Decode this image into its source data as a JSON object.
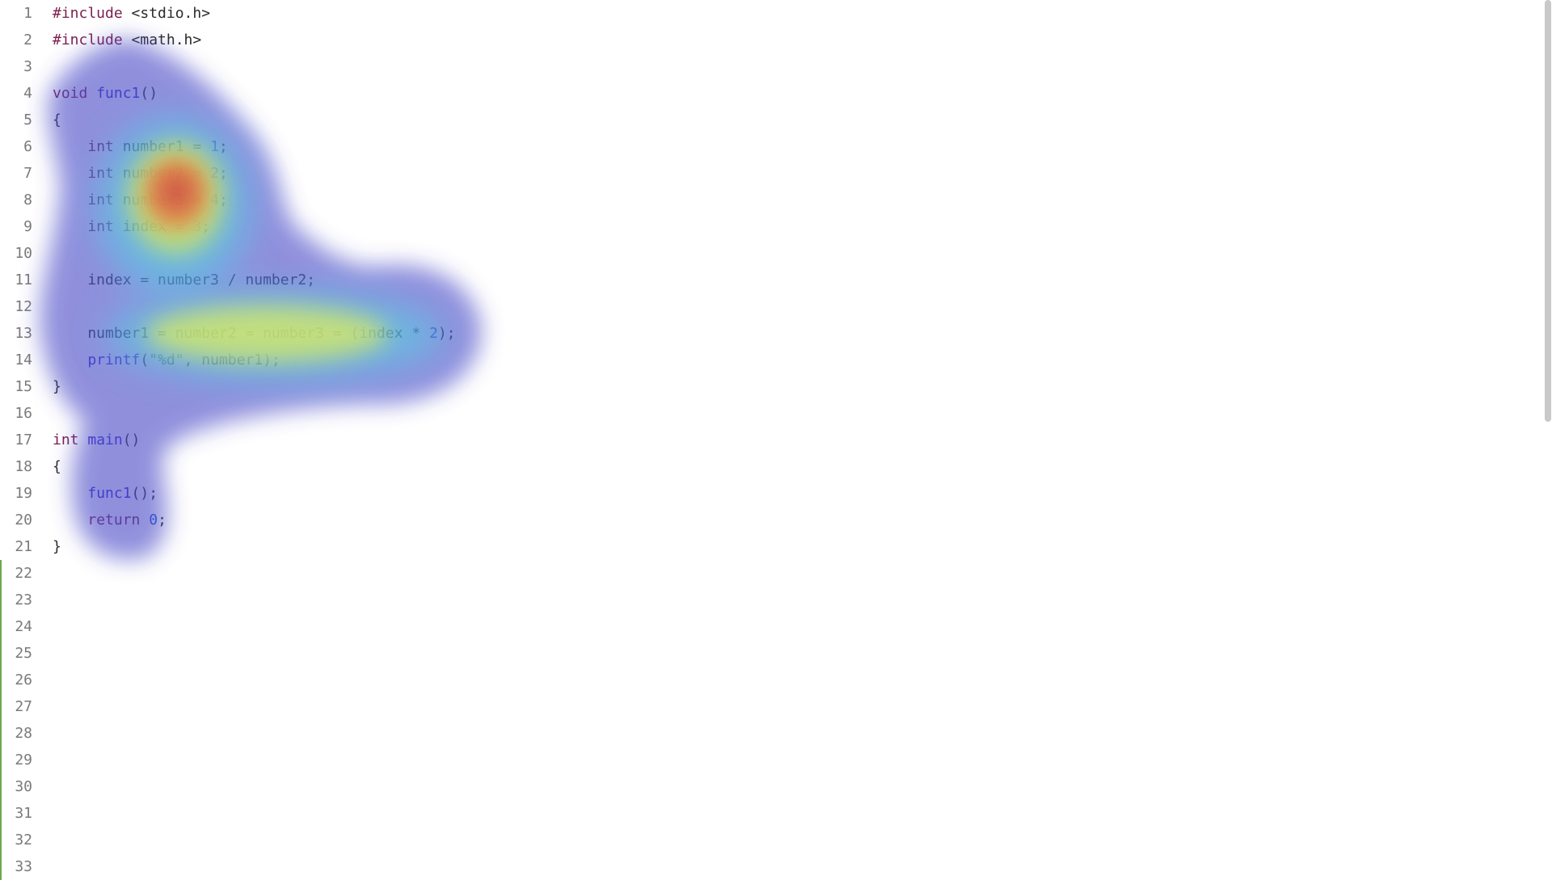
{
  "editor": {
    "lines": [
      {
        "n": "1",
        "tokens": [
          {
            "t": "#include",
            "c": "pp"
          },
          {
            "t": " <stdio.h>",
            "c": "id"
          }
        ]
      },
      {
        "n": "2",
        "tokens": [
          {
            "t": "#include",
            "c": "pp"
          },
          {
            "t": " <math.h>",
            "c": "id"
          }
        ]
      },
      {
        "n": "3",
        "tokens": []
      },
      {
        "n": "4",
        "tokens": [
          {
            "t": "void",
            "c": "kw"
          },
          {
            "t": " ",
            "c": "id"
          },
          {
            "t": "func1",
            "c": "fn"
          },
          {
            "t": "()",
            "c": "id"
          }
        ]
      },
      {
        "n": "5",
        "tokens": [
          {
            "t": "{",
            "c": "id"
          }
        ]
      },
      {
        "n": "6",
        "tokens": [
          {
            "t": "    ",
            "c": "id"
          },
          {
            "t": "int",
            "c": "kw"
          },
          {
            "t": " number1 = ",
            "c": "id"
          },
          {
            "t": "1",
            "c": "num"
          },
          {
            "t": ";",
            "c": "id"
          }
        ]
      },
      {
        "n": "7",
        "tokens": [
          {
            "t": "    ",
            "c": "id"
          },
          {
            "t": "int",
            "c": "kw"
          },
          {
            "t": " number2 = ",
            "c": "id"
          },
          {
            "t": "2",
            "c": "num"
          },
          {
            "t": ";",
            "c": "id"
          }
        ]
      },
      {
        "n": "8",
        "tokens": [
          {
            "t": "    ",
            "c": "id"
          },
          {
            "t": "int",
            "c": "kw"
          },
          {
            "t": " number3 = ",
            "c": "id"
          },
          {
            "t": "4",
            "c": "num"
          },
          {
            "t": ";",
            "c": "id"
          }
        ]
      },
      {
        "n": "9",
        "tokens": [
          {
            "t": "    ",
            "c": "id"
          },
          {
            "t": "int",
            "c": "kw"
          },
          {
            "t": " index = ",
            "c": "id"
          },
          {
            "t": "3",
            "c": "num"
          },
          {
            "t": ";",
            "c": "id"
          }
        ]
      },
      {
        "n": "10",
        "tokens": []
      },
      {
        "n": "11",
        "tokens": [
          {
            "t": "    index = number3 / number2;",
            "c": "id"
          }
        ]
      },
      {
        "n": "12",
        "tokens": []
      },
      {
        "n": "13",
        "tokens": [
          {
            "t": "    number1 = number2 = number3 = (index * ",
            "c": "id"
          },
          {
            "t": "2",
            "c": "num"
          },
          {
            "t": ");",
            "c": "id"
          }
        ]
      },
      {
        "n": "14",
        "tokens": [
          {
            "t": "    ",
            "c": "id"
          },
          {
            "t": "printf",
            "c": "fn"
          },
          {
            "t": "(",
            "c": "id"
          },
          {
            "t": "\"%d\"",
            "c": "str"
          },
          {
            "t": ", number1);",
            "c": "id"
          }
        ]
      },
      {
        "n": "15",
        "tokens": [
          {
            "t": "}",
            "c": "id"
          }
        ]
      },
      {
        "n": "16",
        "tokens": []
      },
      {
        "n": "17",
        "tokens": [
          {
            "t": "int",
            "c": "kw"
          },
          {
            "t": " ",
            "c": "id"
          },
          {
            "t": "main",
            "c": "fn"
          },
          {
            "t": "()",
            "c": "id"
          }
        ]
      },
      {
        "n": "18",
        "tokens": [
          {
            "t": "{",
            "c": "id"
          }
        ]
      },
      {
        "n": "19",
        "tokens": [
          {
            "t": "    ",
            "c": "id"
          },
          {
            "t": "func1",
            "c": "fn"
          },
          {
            "t": "();",
            "c": "id"
          }
        ]
      },
      {
        "n": "20",
        "tokens": [
          {
            "t": "    ",
            "c": "id"
          },
          {
            "t": "return",
            "c": "kw"
          },
          {
            "t": " ",
            "c": "id"
          },
          {
            "t": "0",
            "c": "num"
          },
          {
            "t": ";",
            "c": "id"
          }
        ]
      },
      {
        "n": "21",
        "tokens": [
          {
            "t": "}",
            "c": "id"
          }
        ]
      },
      {
        "n": "22",
        "tokens": [],
        "modified": true
      },
      {
        "n": "23",
        "tokens": [],
        "modified": true
      },
      {
        "n": "24",
        "tokens": [],
        "modified": true
      },
      {
        "n": "25",
        "tokens": [],
        "modified": true
      },
      {
        "n": "26",
        "tokens": [],
        "modified": true
      },
      {
        "n": "27",
        "tokens": [],
        "modified": true
      },
      {
        "n": "28",
        "tokens": [],
        "modified": true
      },
      {
        "n": "29",
        "tokens": [],
        "modified": true
      },
      {
        "n": "30",
        "tokens": [],
        "modified": true
      },
      {
        "n": "31",
        "tokens": [],
        "modified": true
      },
      {
        "n": "32",
        "tokens": [],
        "modified": true
      },
      {
        "n": "33",
        "tokens": [],
        "modified": true
      }
    ]
  },
  "overlay": {
    "type": "attention-heatmap",
    "colors": {
      "low": "#5a5ad2",
      "mid": "#f0f050",
      "high": "#e05050"
    }
  }
}
